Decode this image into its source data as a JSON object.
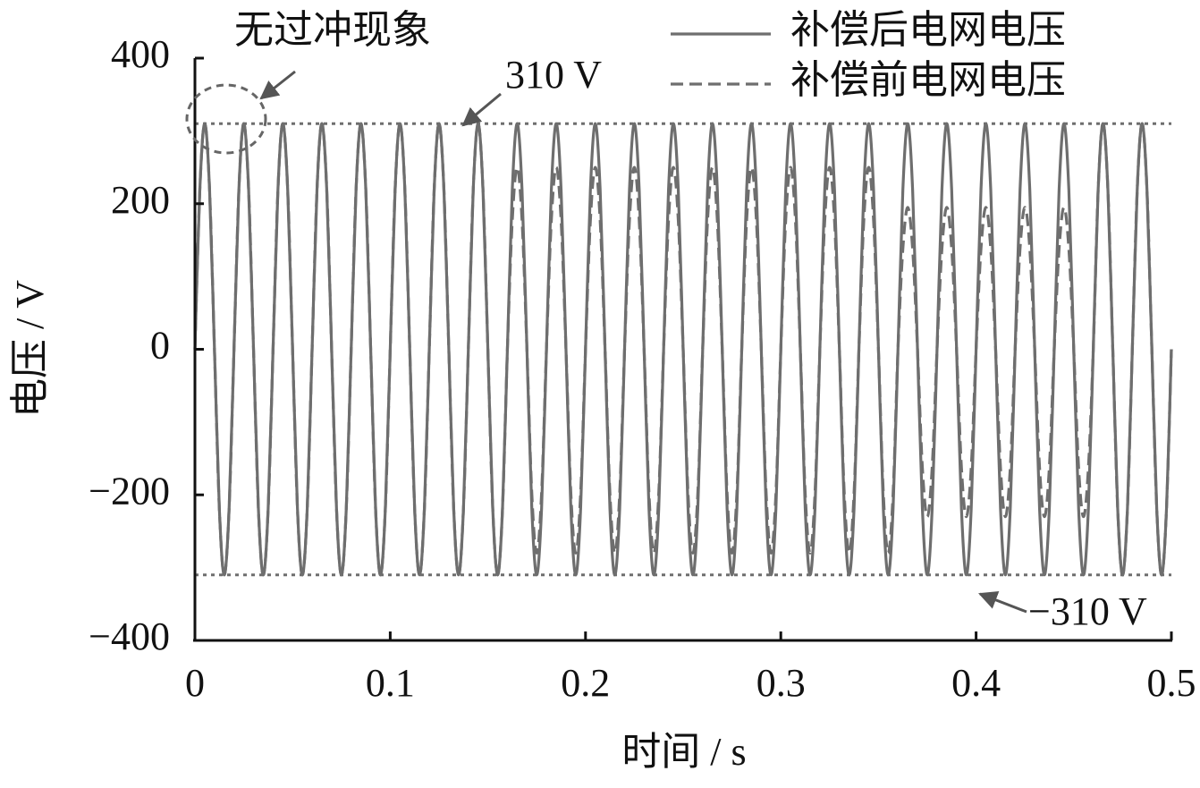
{
  "chart_data": {
    "type": "line",
    "x_label": "时间 / s",
    "y_label": "电压 / V",
    "xlim": [
      0,
      0.5
    ],
    "xticks": [
      0,
      0.1,
      0.2,
      0.3,
      0.4,
      0.5
    ],
    "ylim": [
      -400,
      400
    ],
    "yticks": [
      400,
      200,
      0,
      {
        "value": -200,
        "label": "−200"
      },
      {
        "value": -400,
        "label": "−400"
      }
    ],
    "legend": "top-right",
    "reference_lines": [
      310,
      -310
    ],
    "annotations": [
      "无过冲现象",
      "310 V",
      "−310 V"
    ],
    "x": [
      0,
      0.0025,
      0.005,
      0.0075,
      0.01,
      0.0125,
      0.015,
      0.0175,
      0.02,
      0.0225,
      0.025,
      0.0275,
      0.03,
      0.0325,
      0.035,
      0.0375,
      0.04,
      0.0425,
      0.045,
      0.0475,
      0.05,
      0.0525,
      0.055,
      0.0575,
      0.06,
      0.0625,
      0.065,
      0.0675,
      0.07,
      0.0725,
      0.075,
      0.0775,
      0.08,
      0.0825,
      0.085,
      0.0875,
      0.09,
      0.0925,
      0.095,
      0.0975,
      0.1,
      0.1025,
      0.105,
      0.1075,
      0.11,
      0.1125,
      0.115,
      0.1175,
      0.12,
      0.1225,
      0.125,
      0.1275,
      0.13,
      0.1325,
      0.135,
      0.1375,
      0.14,
      0.1425,
      0.145,
      0.1475,
      0.15,
      0.1525,
      0.155,
      0.1575,
      0.16,
      0.1625,
      0.165,
      0.1675,
      0.17,
      0.1725,
      0.175,
      0.1775,
      0.18,
      0.1825,
      0.185,
      0.1875,
      0.19,
      0.1925,
      0.195,
      0.1975,
      0.2,
      0.2025,
      0.205,
      0.2075,
      0.21,
      0.2125,
      0.215,
      0.2175,
      0.22,
      0.2225,
      0.225,
      0.2275,
      0.23,
      0.2325,
      0.235,
      0.2375,
      0.24,
      0.2425,
      0.245,
      0.2475,
      0.25,
      0.2525,
      0.255,
      0.2575,
      0.26,
      0.2625,
      0.265,
      0.2675,
      0.27,
      0.2725,
      0.275,
      0.2775,
      0.28,
      0.2825,
      0.285,
      0.2875,
      0.29,
      0.2925,
      0.295,
      0.2975,
      0.3,
      0.3025,
      0.305,
      0.3075,
      0.31,
      0.3125,
      0.315,
      0.3175,
      0.32,
      0.3225,
      0.325,
      0.3275,
      0.33,
      0.3325,
      0.335,
      0.3375,
      0.34,
      0.3425,
      0.345,
      0.3475,
      0.35,
      0.3525,
      0.355,
      0.3575,
      0.36,
      0.3625,
      0.365,
      0.3675,
      0.37,
      0.3725,
      0.375,
      0.3775,
      0.38,
      0.3825,
      0.385,
      0.3875,
      0.39,
      0.3925,
      0.395,
      0.3975,
      0.4,
      0.4025,
      0.405,
      0.4075,
      0.41,
      0.4125,
      0.415,
      0.4175,
      0.42,
      0.4225,
      0.425,
      0.4275,
      0.43,
      0.4325,
      0.435,
      0.4375,
      0.44,
      0.4425,
      0.445,
      0.4475,
      0.45,
      0.4525,
      0.455,
      0.4575,
      0.46,
      0.4625,
      0.465,
      0.4675,
      0.47,
      0.4725,
      0.475,
      0.4775,
      0.48,
      0.4825,
      0.485,
      0.4875,
      0.49,
      0.4925,
      0.495,
      0.4975,
      0.5
    ],
    "series": [
      {
        "name": "补偿后电网电压",
        "color": "#6e6e6e",
        "style": "solid",
        "values": [
          0,
          219,
          310,
          219,
          0,
          -219,
          -310,
          -219,
          0,
          219,
          310,
          219,
          0,
          -219,
          -310,
          -219,
          0,
          219,
          310,
          219,
          0,
          -219,
          -310,
          -219,
          0,
          219,
          310,
          219,
          0,
          -219,
          -310,
          -219,
          0,
          219,
          310,
          219,
          0,
          -219,
          -310,
          -219,
          0,
          219,
          310,
          219,
          0,
          -219,
          -310,
          -219,
          0,
          219,
          310,
          219,
          0,
          -219,
          -310,
          -219,
          0,
          219,
          310,
          219,
          0,
          -219,
          -310,
          -219,
          0,
          219,
          310,
          219,
          0,
          -219,
          -310,
          -219,
          0,
          219,
          310,
          219,
          0,
          -219,
          -310,
          -219,
          0,
          219,
          310,
          219,
          0,
          -219,
          -310,
          -219,
          0,
          219,
          310,
          219,
          0,
          -219,
          -310,
          -219,
          0,
          219,
          310,
          219,
          0,
          -219,
          -310,
          -219,
          0,
          219,
          310,
          219,
          0,
          -219,
          -310,
          -219,
          0,
          219,
          310,
          219,
          0,
          -219,
          -310,
          -219,
          0,
          219,
          310,
          219,
          0,
          -219,
          -310,
          -219,
          0,
          219,
          310,
          219,
          0,
          -219,
          -310,
          -219,
          0,
          219,
          310,
          219,
          0,
          -219,
          -310,
          -219,
          0,
          219,
          310,
          219,
          0,
          -219,
          -310,
          -219,
          0,
          219,
          310,
          219,
          0,
          -219,
          -310,
          -219,
          0,
          219,
          310,
          219,
          0,
          -219,
          -310,
          -219,
          0,
          219,
          310,
          219,
          0,
          -219,
          -310,
          -219,
          0,
          219,
          310,
          219,
          0,
          -219,
          -310,
          -219,
          0,
          219,
          310,
          219,
          0,
          -219,
          -310,
          -219,
          0,
          219,
          310,
          219,
          0,
          -219,
          -310,
          -219,
          0
        ]
      },
      {
        "name": "补偿前电网电压",
        "color": "#6e6e6e",
        "style": "dashed",
        "values": [
          0,
          219,
          310,
          219,
          0,
          -219,
          -310,
          -219,
          0,
          219,
          310,
          219,
          0,
          -219,
          -310,
          -219,
          0,
          219,
          310,
          219,
          0,
          -219,
          -310,
          -219,
          0,
          219,
          310,
          219,
          0,
          -219,
          -310,
          -219,
          0,
          219,
          310,
          219,
          0,
          -219,
          -310,
          -219,
          0,
          219,
          310,
          219,
          0,
          -219,
          -310,
          -219,
          0,
          219,
          310,
          219,
          0,
          -219,
          -310,
          -219,
          0,
          219,
          310,
          219,
          0,
          -219,
          -310,
          -219,
          0,
          177,
          250,
          177,
          0,
          -198,
          -280,
          -198,
          0,
          177,
          250,
          177,
          0,
          -198,
          -280,
          -198,
          0,
          177,
          250,
          177,
          0,
          -198,
          -280,
          -198,
          0,
          177,
          250,
          177,
          0,
          -198,
          -280,
          -198,
          0,
          177,
          250,
          177,
          0,
          -198,
          -280,
          -198,
          0,
          177,
          250,
          177,
          0,
          -198,
          -280,
          -198,
          0,
          177,
          250,
          177,
          0,
          -198,
          -280,
          -198,
          0,
          177,
          250,
          177,
          0,
          -198,
          -280,
          -198,
          0,
          177,
          250,
          177,
          0,
          -198,
          -280,
          -198,
          0,
          177,
          250,
          177,
          0,
          -198,
          -280,
          -198,
          0,
          138,
          195,
          138,
          0,
          -163,
          -230,
          -163,
          0,
          138,
          195,
          138,
          0,
          -163,
          -230,
          -163,
          0,
          138,
          195,
          138,
          0,
          -163,
          -230,
          -163,
          0,
          138,
          195,
          138,
          0,
          -163,
          -230,
          -163,
          0,
          138,
          195,
          138,
          0,
          -163,
          -230,
          -163,
          0,
          219,
          310,
          219,
          0,
          -219,
          -310,
          -219,
          0,
          219,
          310,
          219,
          0,
          -219,
          -310,
          -219,
          0
        ]
      }
    ]
  }
}
